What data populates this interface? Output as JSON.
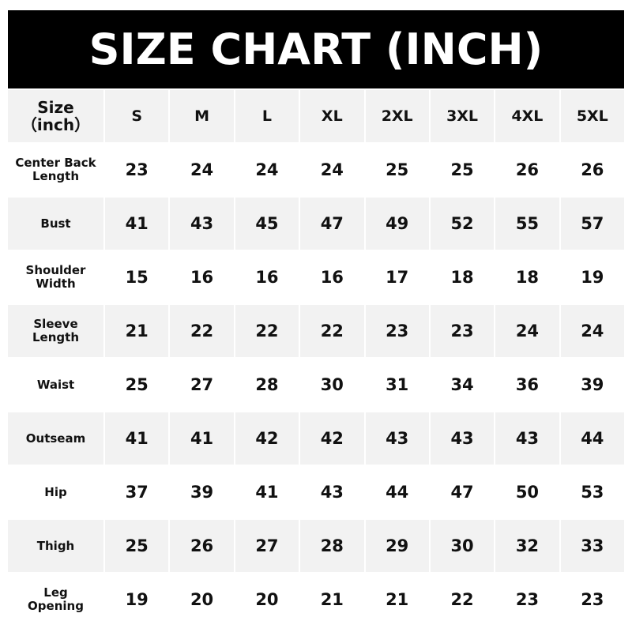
{
  "title": "SIZE CHART (INCH)",
  "header": {
    "corner_line1": "Size",
    "corner_line2": "（inch）",
    "sizes": [
      "S",
      "M",
      "L",
      "XL",
      "2XL",
      "3XL",
      "4XL",
      "5XL"
    ]
  },
  "rows": [
    {
      "label": "Center Back Length",
      "values": [
        "23",
        "24",
        "24",
        "24",
        "25",
        "25",
        "26",
        "26"
      ]
    },
    {
      "label": "Bust",
      "values": [
        "41",
        "43",
        "45",
        "47",
        "49",
        "52",
        "55",
        "57"
      ]
    },
    {
      "label": "Shoulder Width",
      "values": [
        "15",
        "16",
        "16",
        "16",
        "17",
        "18",
        "18",
        "19"
      ]
    },
    {
      "label": "Sleeve Length",
      "values": [
        "21",
        "22",
        "22",
        "22",
        "23",
        "23",
        "24",
        "24"
      ]
    },
    {
      "label": "Waist",
      "values": [
        "25",
        "27",
        "28",
        "30",
        "31",
        "34",
        "36",
        "39"
      ]
    },
    {
      "label": "Outseam",
      "values": [
        "41",
        "41",
        "42",
        "42",
        "43",
        "43",
        "43",
        "44"
      ]
    },
    {
      "label": "Hip",
      "values": [
        "37",
        "39",
        "41",
        "43",
        "44",
        "47",
        "50",
        "53"
      ]
    },
    {
      "label": "Thigh",
      "values": [
        "25",
        "26",
        "27",
        "28",
        "29",
        "30",
        "32",
        "33"
      ]
    },
    {
      "label": "Leg Opening",
      "values": [
        "19",
        "20",
        "20",
        "21",
        "21",
        "22",
        "23",
        "23"
      ]
    }
  ],
  "colors": {
    "banner": "#000000",
    "stripe": "#f2f2f2",
    "text": "#111111"
  }
}
